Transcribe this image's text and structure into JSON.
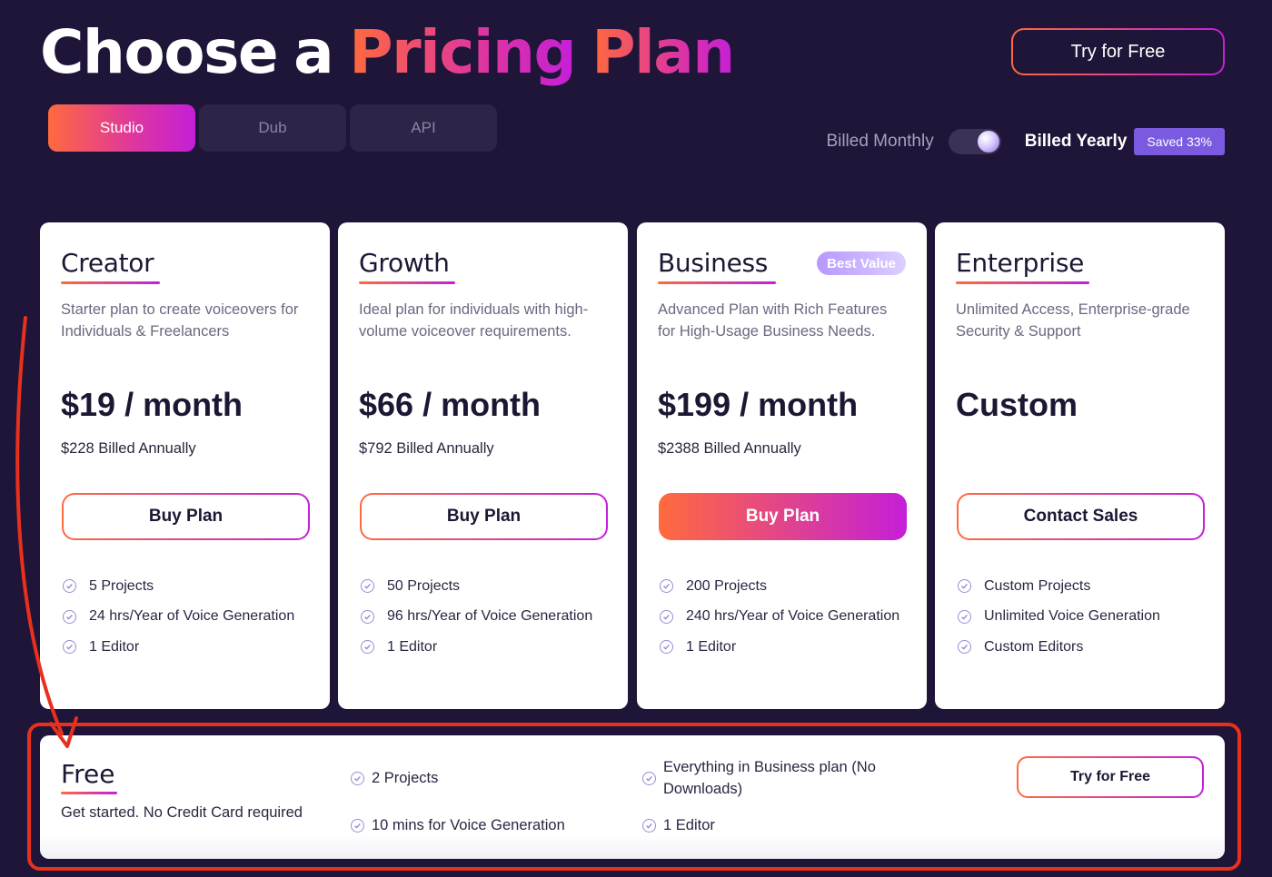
{
  "header": {
    "title_words": [
      "Choose",
      "a",
      "Pricing",
      "Plan"
    ],
    "try_button": "Try for Free"
  },
  "tabs": [
    {
      "label": "Studio",
      "active": true
    },
    {
      "label": "Dub",
      "active": false
    },
    {
      "label": "API",
      "active": false
    }
  ],
  "billing": {
    "monthly_label": "Billed Monthly",
    "yearly_label": "Billed Yearly",
    "selected": "yearly",
    "saved_badge": "Saved 33%"
  },
  "plans": [
    {
      "name": "Creator",
      "description": "Starter plan to create voiceovers for Individuals & Freelancers",
      "price": "$19 / month",
      "annual": "$228 Billed Annually",
      "button": "Buy Plan",
      "features": [
        "5 Projects",
        "24 hrs/Year of Voice Generation",
        "1 Editor"
      ]
    },
    {
      "name": "Growth",
      "description": "Ideal plan for individuals with high-volume voiceover requirements.",
      "price": "$66 / month",
      "annual": "$792 Billed Annually",
      "button": "Buy Plan",
      "features": [
        "50 Projects",
        "96 hrs/Year of Voice Generation",
        "1 Editor"
      ]
    },
    {
      "name": "Business",
      "badge": "Best Value",
      "description": "Advanced Plan with Rich Features for High-Usage Business Needs.",
      "price": "$199 / month",
      "annual": "$2388 Billed Annually",
      "button": "Buy Plan",
      "features": [
        "200 Projects",
        "240 hrs/Year of Voice Generation",
        "1 Editor"
      ]
    },
    {
      "name": "Enterprise",
      "description": "Unlimited Access, Enterprise-grade Security & Support",
      "price": "Custom",
      "annual": "",
      "button": "Contact Sales",
      "features": [
        "Custom Projects",
        "Unlimited Voice Generation",
        "Custom Editors"
      ]
    }
  ],
  "free_plan": {
    "name": "Free",
    "description": "Get started. No Credit Card required",
    "features": [
      "2 Projects",
      "10 mins for Voice Generation",
      "Everything in Business plan (No Downloads)",
      "1 Editor"
    ],
    "button": "Try for Free"
  },
  "colors": {
    "background": "#1e1538",
    "gradient_start": "#ff6a3d",
    "gradient_end": "#c41fd8",
    "annotation": "#e8301e",
    "badge": "#7a5be0"
  }
}
